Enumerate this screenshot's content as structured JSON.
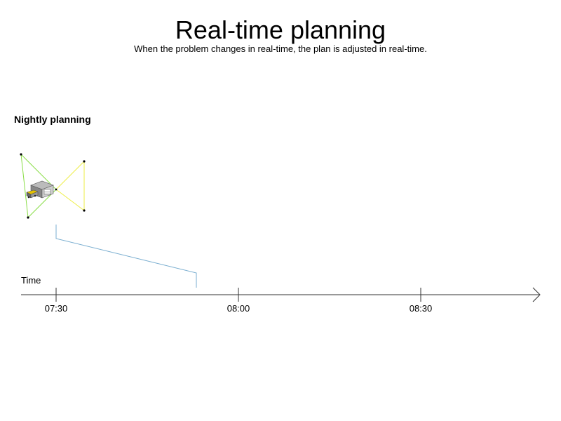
{
  "header": {
    "title": "Real-time planning",
    "subtitle": "When the problem changes in real-time, the plan is adjusted in real-time."
  },
  "section": {
    "label": "Nightly planning"
  },
  "timeline": {
    "axis_label": "Time",
    "ticks": [
      "07:30",
      "08:00",
      "08:30"
    ]
  },
  "colors": {
    "route_green": "#88dd44",
    "route_yellow": "#eeee44",
    "bracket_blue": "#7aaed0",
    "axis": "#333333"
  },
  "icons": {
    "depot": "warehouse-truck-icon"
  }
}
